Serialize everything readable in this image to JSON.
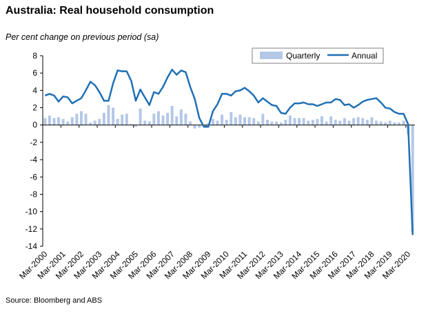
{
  "title": "Australia: Real household consumption",
  "subtitle": "Per cent change on previous period (sa)",
  "source": "Source: Bloomberg and ABS",
  "chart_data": {
    "type": "bar",
    "ylim": [
      -14,
      8
    ],
    "yticks": [
      8,
      6,
      4,
      2,
      0,
      -2,
      -4,
      -6,
      -8,
      -10,
      -12,
      -14
    ],
    "xtick_labels": [
      "Mar-2000",
      "Mar-2001",
      "Mar-2002",
      "Mar-2003",
      "Mar-2004",
      "Mar-2005",
      "Mar-2006",
      "Mar-2007",
      "Mar-2008",
      "Mar-2009",
      "Mar-2010",
      "Mar-2011",
      "Mar-2012",
      "Mar-2013",
      "Mar-2014",
      "Mar-2015",
      "Mar-2016",
      "Mar-2017",
      "Mar-2018",
      "Mar-2019",
      "Mar-2020"
    ],
    "legend_position": "top-right",
    "colors": {
      "quarterly": "#b4c7e7",
      "annual": "#1f6fb5"
    },
    "series": [
      {
        "name": "Quarterly",
        "type": "bar",
        "values": [
          0.8,
          1.1,
          0.8,
          0.9,
          0.7,
          0.4,
          0.9,
          1.3,
          1.6,
          1.3,
          0.3,
          0.5,
          0.7,
          1.4,
          2.3,
          2.0,
          0.7,
          1.2,
          1.3,
          0.1,
          -0.2,
          1.9,
          0.5,
          0.4,
          1.3,
          1.6,
          1.1,
          1.4,
          2.2,
          1.0,
          1.8,
          1.3,
          0.4,
          -0.4,
          -0.3,
          -0.2,
          0.2,
          0.7,
          0.5,
          1.2,
          0.6,
          1.5,
          0.9,
          1.2,
          0.9,
          0.9,
          0.8,
          0.4,
          1.3,
          0.6,
          0.4,
          0.4,
          0.3,
          0.6,
          1.1,
          0.8,
          0.8,
          0.8,
          0.5,
          0.6,
          0.7,
          1.0,
          0.4,
          1.0,
          0.6,
          0.5,
          0.8,
          0.5,
          0.8,
          0.9,
          0.8,
          0.6,
          0.9,
          0.5,
          0.4,
          0.3,
          0.5,
          0.3,
          0.3,
          0.5,
          -1.1,
          -12.3
        ]
      },
      {
        "name": "Annual",
        "type": "line",
        "values": [
          3.4,
          3.6,
          3.4,
          2.7,
          3.3,
          3.2,
          2.5,
          2.8,
          3.1,
          4.0,
          5.0,
          4.6,
          3.8,
          2.8,
          2.8,
          4.8,
          6.3,
          6.2,
          6.2,
          5.1,
          2.8,
          4.1,
          3.2,
          2.3,
          3.8,
          3.6,
          4.4,
          5.5,
          6.4,
          5.8,
          6.3,
          6.1,
          4.4,
          3.0,
          0.8,
          -0.2,
          -0.2,
          1.6,
          2.4,
          3.6,
          3.6,
          3.4,
          3.9,
          4.0,
          4.3,
          3.9,
          3.4,
          2.6,
          3.1,
          2.7,
          2.3,
          2.2,
          1.4,
          1.3,
          2.0,
          2.5,
          2.5,
          2.6,
          2.4,
          2.4,
          2.2,
          2.4,
          2.6,
          2.6,
          3.0,
          2.9,
          2.3,
          2.4,
          2.0,
          2.3,
          2.7,
          2.9,
          3.0,
          3.1,
          2.6,
          2.0,
          1.9,
          1.5,
          1.3,
          1.3,
          0.1,
          -12.7
        ]
      }
    ]
  }
}
